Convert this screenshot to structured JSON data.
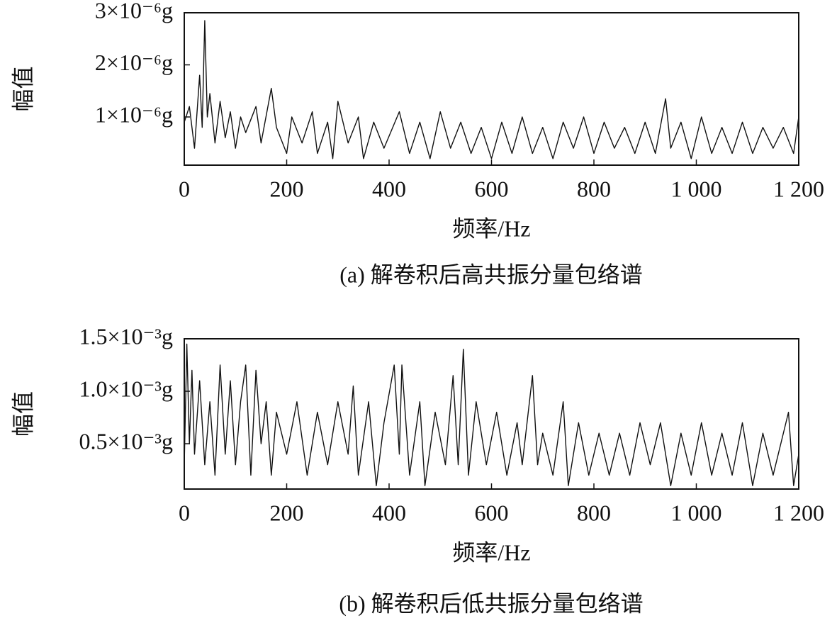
{
  "chart_data": [
    {
      "type": "line",
      "ylabel": "幅值",
      "xlabel": "频率/Hz",
      "caption": "(a) 解卷积后高共振分量包络谱",
      "xlim": [
        0,
        1200
      ],
      "ylim": [
        7.5e-08,
        3e-06
      ],
      "xticks": [
        0,
        200,
        400,
        600,
        800,
        {
          "value": 1000,
          "label": "1 000"
        },
        {
          "value": 1200,
          "label": "1 200"
        }
      ],
      "yticks": [
        {
          "value": 1e-06,
          "label": "1×10⁻⁶g"
        },
        {
          "value": 2e-06,
          "label": "2×10⁻⁶g"
        },
        {
          "value": 3e-06,
          "label": "3×10⁻⁶g"
        }
      ],
      "series": [
        {
          "color": "#111111",
          "x": [
            0,
            10,
            20,
            30,
            35,
            40,
            45,
            50,
            60,
            70,
            80,
            90,
            100,
            110,
            120,
            140,
            150,
            170,
            180,
            200,
            210,
            230,
            250,
            260,
            280,
            290,
            300,
            320,
            340,
            350,
            370,
            390,
            420,
            440,
            460,
            480,
            500,
            520,
            540,
            560,
            580,
            600,
            620,
            640,
            660,
            680,
            700,
            720,
            740,
            760,
            780,
            800,
            820,
            840,
            860,
            880,
            900,
            920,
            940,
            950,
            970,
            990,
            1010,
            1030,
            1050,
            1070,
            1090,
            1110,
            1130,
            1150,
            1170,
            1190,
            1200
          ],
          "values": [
            9e-07,
            1.2e-06,
            4e-07,
            1.8e-06,
            8e-07,
            2.85e-06,
            1e-06,
            1.45e-06,
            5e-07,
            1.3e-06,
            6e-07,
            1.1e-06,
            4e-07,
            1e-06,
            7e-07,
            1.2e-06,
            5e-07,
            1.55e-06,
            8e-07,
            3e-07,
            1e-06,
            5e-07,
            1.1e-06,
            3e-07,
            9e-07,
            2e-07,
            1.3e-06,
            5e-07,
            1e-06,
            2e-07,
            9e-07,
            4e-07,
            1.1e-06,
            3e-07,
            9e-07,
            2e-07,
            1.1e-06,
            4e-07,
            9e-07,
            3e-07,
            8e-07,
            2e-07,
            9e-07,
            3e-07,
            1e-06,
            3e-07,
            8e-07,
            2e-07,
            9e-07,
            4e-07,
            1e-06,
            3e-07,
            9e-07,
            4e-07,
            8e-07,
            3e-07,
            9e-07,
            3e-07,
            1.35e-06,
            4e-07,
            9e-07,
            2e-07,
            1e-06,
            3e-07,
            8e-07,
            3e-07,
            9e-07,
            3e-07,
            8e-07,
            4e-07,
            8e-07,
            3e-07,
            1e-06
          ]
        }
      ]
    },
    {
      "type": "line",
      "ylabel": "幅值",
      "xlabel": "频率/Hz",
      "caption": "(b) 解卷积后低共振分量包络谱",
      "xlim": [
        0,
        1200
      ],
      "ylim": [
        6.8e-05,
        0.0015
      ],
      "xticks": [
        0,
        200,
        400,
        600,
        800,
        {
          "value": 1000,
          "label": "1 000"
        },
        {
          "value": 1200,
          "label": "1 200"
        }
      ],
      "yticks": [
        {
          "value": 0.0005,
          "label": "0.5×10⁻³g"
        },
        {
          "value": 0.001,
          "label": "1.0×10⁻³g"
        },
        {
          "value": 0.0015,
          "label": "1.5×10⁻³g"
        }
      ],
      "series": [
        {
          "color": "#111111",
          "x": [
            0,
            5,
            10,
            15,
            20,
            30,
            40,
            50,
            60,
            70,
            80,
            90,
            100,
            110,
            120,
            130,
            140,
            150,
            160,
            170,
            180,
            200,
            220,
            240,
            260,
            280,
            300,
            320,
            330,
            340,
            360,
            375,
            390,
            410,
            420,
            425,
            440,
            460,
            470,
            490,
            510,
            525,
            535,
            545,
            555,
            570,
            590,
            610,
            630,
            650,
            660,
            680,
            690,
            700,
            720,
            740,
            750,
            770,
            790,
            810,
            830,
            850,
            870,
            890,
            910,
            930,
            950,
            970,
            990,
            1010,
            1030,
            1050,
            1070,
            1090,
            1110,
            1130,
            1150,
            1180,
            1190,
            1200
          ],
          "values": [
            0.0003,
            0.00145,
            0.0005,
            0.0012,
            0.0004,
            0.0011,
            0.0003,
            0.0009,
            0.0002,
            0.00125,
            0.0004,
            0.0011,
            0.0003,
            0.0009,
            0.00125,
            0.0002,
            0.0012,
            0.0005,
            0.0009,
            0.0002,
            0.0008,
            0.0004,
            0.0009,
            0.0002,
            0.0008,
            0.0003,
            0.0009,
            0.0004,
            0.00105,
            0.0002,
            0.0009,
            0.0001,
            0.0007,
            0.00125,
            0.0004,
            0.00125,
            0.0002,
            0.0009,
            0.0001,
            0.0008,
            0.0003,
            0.00115,
            0.0003,
            0.0014,
            0.0002,
            0.0009,
            0.0003,
            0.0008,
            0.0002,
            0.0007,
            0.0003,
            0.00115,
            0.0003,
            0.0006,
            0.0002,
            0.0009,
            0.0001,
            0.0007,
            0.0002,
            0.0006,
            0.0002,
            0.0006,
            0.0002,
            0.0007,
            0.0003,
            0.0007,
            0.0001,
            0.0006,
            0.0002,
            0.0007,
            0.0002,
            0.0006,
            0.0002,
            0.0007,
            0.0001,
            0.0006,
            0.0002,
            0.0008,
            0.0001,
            0.0004
          ]
        }
      ]
    }
  ]
}
